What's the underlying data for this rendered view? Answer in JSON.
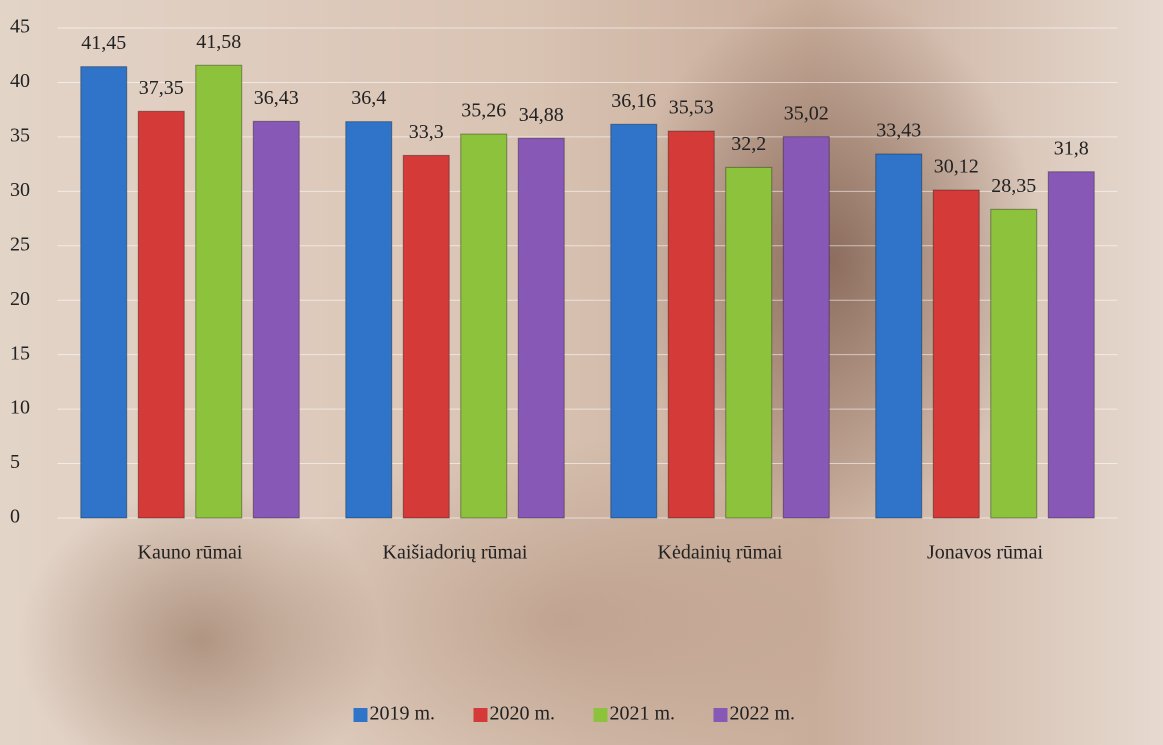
{
  "chart_data": {
    "type": "bar",
    "categories": [
      "Kauno rūmai",
      "Kaišiadorių rūmai",
      "Kėdainių rūmai",
      "Jonavos rūmai"
    ],
    "series": [
      {
        "name": "2019 m.",
        "color": "#2f74c8",
        "values": [
          41.45,
          36.4,
          36.16,
          33.43
        ],
        "value_labels": [
          "41,45",
          "36,4",
          "36,16",
          "33,43"
        ]
      },
      {
        "name": "2020 m.",
        "color": "#d33a38",
        "values": [
          37.35,
          33.3,
          35.53,
          30.12
        ],
        "value_labels": [
          "37,35",
          "33,3",
          "35,53",
          "30,12"
        ]
      },
      {
        "name": "2021 m.",
        "color": "#8cc23c",
        "values": [
          41.58,
          35.26,
          32.2,
          28.35
        ],
        "value_labels": [
          "41,58",
          "35,26",
          "32,2",
          "28,35"
        ]
      },
      {
        "name": "2022 m.",
        "color": "#8858b6",
        "values": [
          36.43,
          34.88,
          35.02,
          31.8
        ],
        "value_labels": [
          "36,43",
          "34,88",
          "35,02",
          "31,8"
        ]
      }
    ],
    "ylim": [
      0,
      45
    ],
    "yticks": [
      0,
      5,
      10,
      15,
      20,
      25,
      30,
      35,
      40,
      45
    ],
    "grid": true,
    "legend": "bottom"
  }
}
